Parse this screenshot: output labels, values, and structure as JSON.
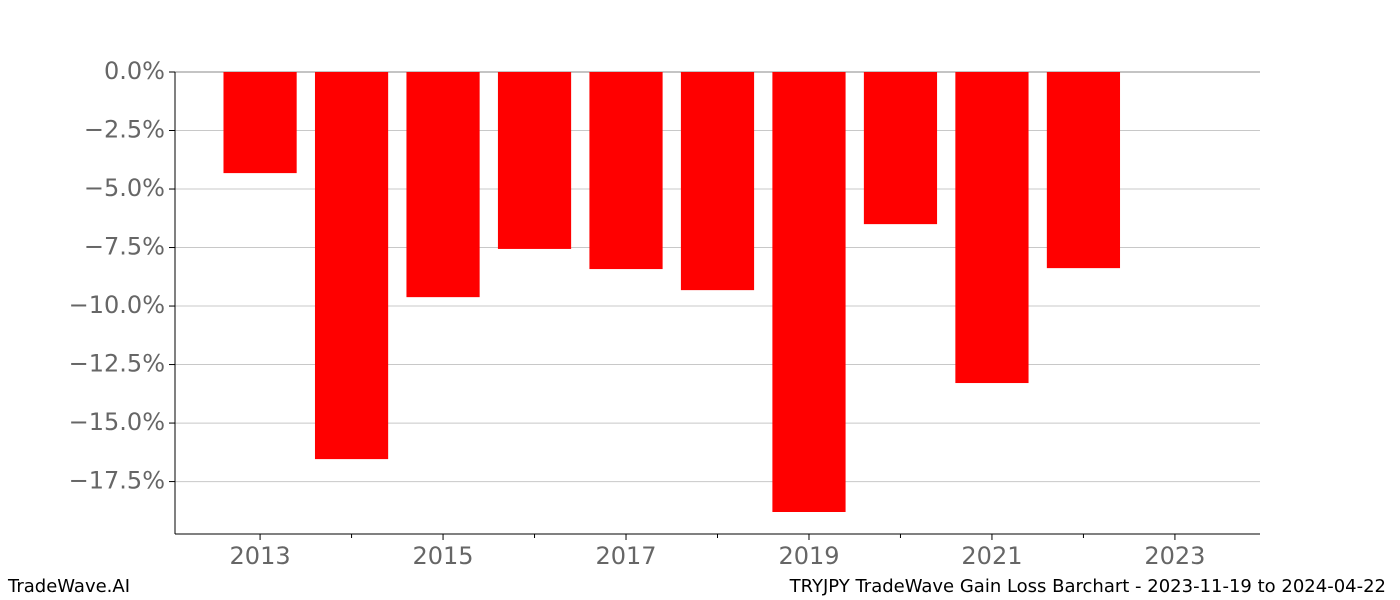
{
  "chart_data": {
    "type": "bar",
    "x": [
      2013,
      2014,
      2015,
      2016,
      2017,
      2018,
      2019,
      2020,
      2021,
      2022
    ],
    "values": [
      -4.32,
      -16.54,
      -9.62,
      -7.56,
      -8.42,
      -9.32,
      -18.8,
      -6.5,
      -13.29,
      -8.38
    ],
    "color": "#ff0000",
    "xlim": [
      2012.07,
      2023.93
    ],
    "xticks": [
      2013,
      2015,
      2017,
      2019,
      2021,
      2023
    ],
    "xminorticks": [
      2014,
      2016,
      2018,
      2020,
      2022
    ],
    "ylim": [
      -19.74,
      0
    ],
    "yticks": [
      {
        "value": 0,
        "label": "0.0%"
      },
      {
        "value": -2.5,
        "label": "−2.5%"
      },
      {
        "value": -5,
        "label": "−5.0%"
      },
      {
        "value": -7.5,
        "label": "−7.5%"
      },
      {
        "value": -10,
        "label": "−10.0%"
      },
      {
        "value": -12.5,
        "label": "−12.5%"
      },
      {
        "value": -15,
        "label": "−15.0%"
      },
      {
        "value": -17.5,
        "label": "−17.5%"
      }
    ],
    "grid": true,
    "footer_left": "TradeWave.AI",
    "footer_right": "TRYJPY TradeWave Gain Loss Barchart - 2023-11-19 to 2024-04-22"
  }
}
